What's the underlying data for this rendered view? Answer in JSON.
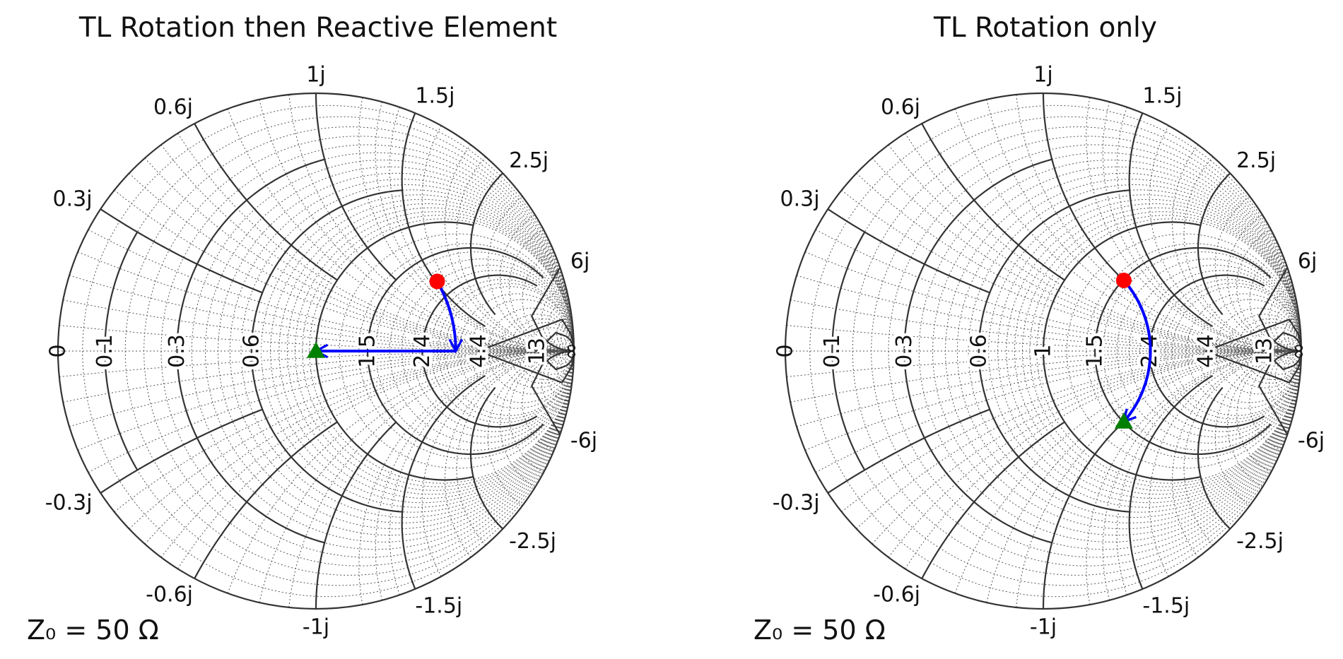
{
  "chart_data": [
    {
      "type": "smith",
      "title": "TL Rotation then Reactive Element",
      "annotation": "Z₀ = 50 Ω",
      "resistance_labels": [
        "0",
        "0.1",
        "0.3",
        "0.6",
        "1",
        "1.5",
        "2.4",
        "4.4",
        "13",
        "∞"
      ],
      "reactance_labels": [
        "0.3j",
        "0.6j",
        "1j",
        "1.5j",
        "2.5j",
        "6j",
        "-0.3j",
        "-0.6j",
        "-1j",
        "-1.5j",
        "-2.5j",
        "-6j"
      ],
      "points": [
        {
          "name": "start",
          "marker": "circle",
          "color": "#ff0000",
          "gamma": [
            0.47,
            0.27
          ]
        },
        {
          "name": "end",
          "marker": "triangle",
          "color": "#008000",
          "gamma": [
            0.0,
            0.0
          ]
        }
      ],
      "path": {
        "color": "#0000ff",
        "segments": [
          {
            "kind": "tl_rotation",
            "from": [
              0.47,
              0.27
            ],
            "to": [
              0.542,
              0.0
            ]
          },
          {
            "kind": "reactive",
            "from": [
              0.542,
              0.0
            ],
            "to": [
              0.0,
              0.0
            ]
          }
        ]
      }
    },
    {
      "type": "smith",
      "title": "TL Rotation only",
      "annotation": "Z₀ = 50 Ω",
      "resistance_labels": [
        "0",
        "0.1",
        "0.3",
        "0.6",
        "1",
        "1.5",
        "2.4",
        "4.4",
        "13",
        "∞"
      ],
      "reactance_labels": [
        "0.3j",
        "0.6j",
        "1j",
        "1.5j",
        "2.5j",
        "6j",
        "-0.3j",
        "-0.6j",
        "-1j",
        "-1.5j",
        "-2.5j",
        "-6j"
      ],
      "points": [
        {
          "name": "start",
          "marker": "circle",
          "color": "#ff0000",
          "gamma": [
            0.312,
            0.274
          ]
        },
        {
          "name": "end",
          "marker": "triangle",
          "color": "#008000",
          "gamma": [
            0.312,
            -0.274
          ]
        }
      ],
      "path": {
        "color": "#0000ff",
        "segments": [
          {
            "kind": "tl_rotation",
            "from": [
              0.312,
              0.274
            ],
            "to": [
              0.312,
              -0.274
            ]
          }
        ]
      }
    }
  ]
}
